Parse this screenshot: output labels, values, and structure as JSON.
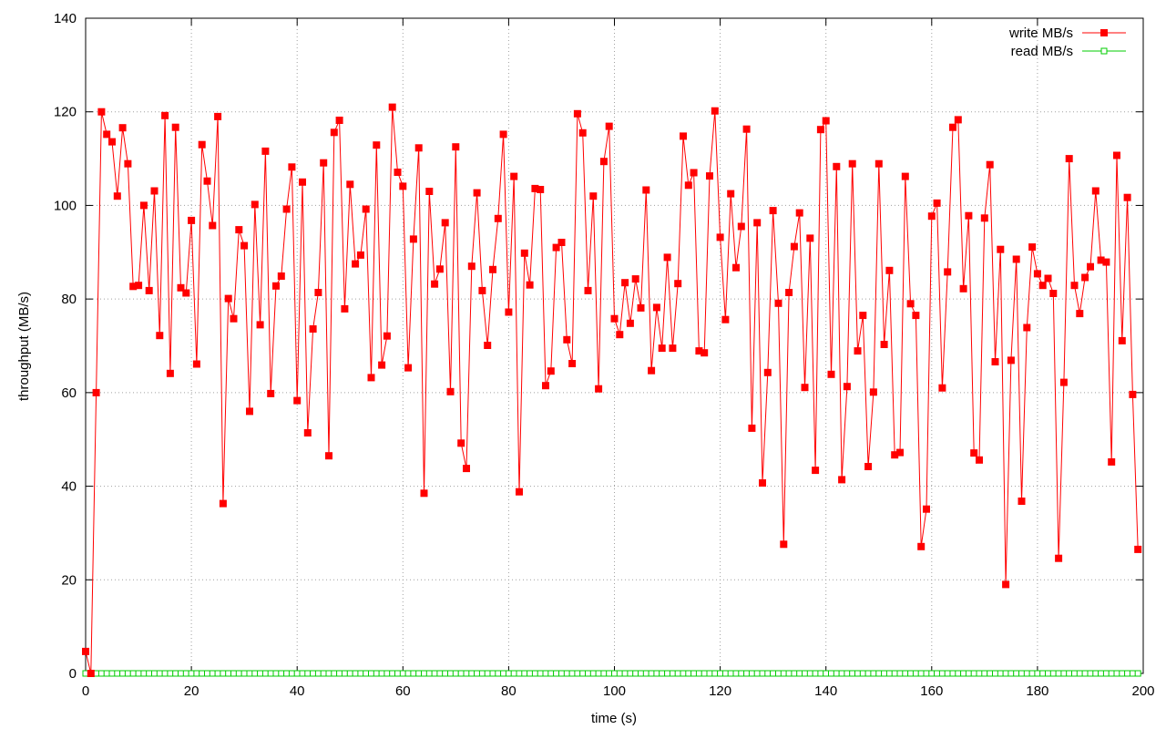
{
  "chart_data": {
    "type": "line",
    "title": "",
    "xlabel": "time (s)",
    "ylabel": "throughput (MB/s)",
    "xlim": [
      0,
      200
    ],
    "ylim": [
      0,
      140
    ],
    "xticks": [
      0,
      20,
      40,
      60,
      80,
      100,
      120,
      140,
      160,
      180,
      200
    ],
    "yticks": [
      0,
      20,
      40,
      60,
      80,
      100,
      120,
      140
    ],
    "grid": true,
    "legend_position": "top-right",
    "x": [
      0,
      1,
      2,
      3,
      4,
      5,
      6,
      7,
      8,
      9,
      10,
      11,
      12,
      13,
      14,
      15,
      16,
      17,
      18,
      19,
      20,
      21,
      22,
      23,
      24,
      25,
      26,
      27,
      28,
      29,
      30,
      31,
      32,
      33,
      34,
      35,
      36,
      37,
      38,
      39,
      40,
      41,
      42,
      43,
      44,
      45,
      46,
      47,
      48,
      49,
      50,
      51,
      52,
      53,
      54,
      55,
      56,
      57,
      58,
      59,
      60,
      61,
      62,
      63,
      64,
      65,
      66,
      67,
      68,
      69,
      70,
      71,
      72,
      73,
      74,
      75,
      76,
      77,
      78,
      79,
      80,
      81,
      82,
      83,
      84,
      85,
      86,
      87,
      88,
      89,
      90,
      91,
      92,
      93,
      94,
      95,
      96,
      97,
      98,
      99,
      100,
      101,
      102,
      103,
      104,
      105,
      106,
      107,
      108,
      109,
      110,
      111,
      112,
      113,
      114,
      115,
      116,
      117,
      118,
      119,
      120,
      121,
      122,
      123,
      124,
      125,
      126,
      127,
      128,
      129,
      130,
      131,
      132,
      133,
      134,
      135,
      136,
      137,
      138,
      139,
      140,
      141,
      142,
      143,
      144,
      145,
      146,
      147,
      148,
      149,
      150,
      151,
      152,
      153,
      154,
      155,
      156,
      157,
      158,
      159,
      160,
      161,
      162,
      163,
      164,
      165,
      166,
      167,
      168,
      169,
      170,
      171,
      172,
      173,
      174,
      175,
      176,
      177,
      178,
      179,
      180,
      181,
      182,
      183,
      184,
      185,
      186,
      187,
      188,
      189,
      190,
      191,
      192,
      193,
      194,
      195,
      196,
      197,
      198,
      199
    ],
    "series": [
      {
        "name": "write MB/s",
        "color": "#ff0000",
        "marker": "filled-square",
        "values": [
          4.7,
          0,
          60,
          120,
          115.2,
          113.6,
          102,
          116.6,
          108.9,
          82.7,
          82.9,
          100,
          81.8,
          103.1,
          72.2,
          119.2,
          64.1,
          116.7,
          82.4,
          81.3,
          96.8,
          66.1,
          113,
          105.2,
          95.7,
          119,
          36.3,
          80.1,
          75.8,
          94.8,
          91.4,
          56,
          100.2,
          74.5,
          111.6,
          59.8,
          82.8,
          84.9,
          99.2,
          108.2,
          58.3,
          105,
          51.4,
          73.6,
          81.4,
          109.1,
          46.5,
          115.6,
          118.2,
          77.9,
          104.5,
          87.5,
          89.4,
          99.2,
          63.2,
          112.9,
          65.9,
          72.1,
          121,
          107.1,
          104.1,
          65.3,
          92.8,
          112.3,
          38.5,
          103,
          83.2,
          86.4,
          96.3,
          60.2,
          112.5,
          49.2,
          43.8,
          87,
          102.7,
          81.8,
          70.1,
          86.3,
          97.2,
          115.2,
          77.2,
          106.2,
          38.8,
          89.8,
          83,
          103.6,
          103.4,
          61.5,
          64.6,
          91,
          92.1,
          71.3,
          66.2,
          119.6,
          115.5,
          81.8,
          102,
          60.8,
          109.4,
          116.9,
          75.8,
          72.4,
          83.5,
          74.8,
          84.3,
          78.1,
          103.3,
          64.7,
          78.2,
          69.5,
          88.9,
          69.5,
          83.3,
          114.8,
          104.3,
          107,
          68.9,
          68.5,
          106.3,
          120.2,
          93.2,
          75.6,
          102.5,
          86.7,
          95.5,
          116.3,
          52.4,
          96.3,
          40.7,
          64.3,
          98.9,
          79.1,
          27.6,
          81.4,
          91.2,
          98.4,
          61.1,
          93,
          43.4,
          116.2,
          118.1,
          63.9,
          108.3,
          41.4,
          61.3,
          108.9,
          68.9,
          76.5,
          44.2,
          60.1,
          108.9,
          70.3,
          86.1,
          46.7,
          47.2,
          106.2,
          79,
          76.5,
          27.1,
          35.1,
          97.7,
          100.5,
          61,
          85.8,
          116.7,
          118.3,
          82.2,
          97.8,
          47.1,
          45.6,
          97.3,
          108.7,
          66.6,
          90.6,
          19,
          66.9,
          88.5,
          36.8,
          73.9,
          91.1,
          85.4,
          82.9,
          84.4,
          81.2,
          24.6,
          62.2,
          110,
          82.9,
          76.9,
          84.6,
          86.9,
          103.1,
          88.3,
          87.9,
          45.2,
          110.7,
          71.1,
          101.7,
          59.6,
          26.5
        ]
      },
      {
        "name": "read MB/s",
        "color": "#00cc00",
        "marker": "open-square",
        "values": [
          0,
          0,
          0,
          0,
          0,
          0,
          0,
          0,
          0,
          0,
          0,
          0,
          0,
          0,
          0,
          0,
          0,
          0,
          0,
          0,
          0,
          0,
          0,
          0,
          0,
          0,
          0,
          0,
          0,
          0,
          0,
          0,
          0,
          0,
          0,
          0,
          0,
          0,
          0,
          0,
          0,
          0,
          0,
          0,
          0,
          0,
          0,
          0,
          0,
          0,
          0,
          0,
          0,
          0,
          0,
          0,
          0,
          0,
          0,
          0,
          0,
          0,
          0,
          0,
          0,
          0,
          0,
          0,
          0,
          0,
          0,
          0,
          0,
          0,
          0,
          0,
          0,
          0,
          0,
          0,
          0,
          0,
          0,
          0,
          0,
          0,
          0,
          0,
          0,
          0,
          0,
          0,
          0,
          0,
          0,
          0,
          0,
          0,
          0,
          0,
          0,
          0,
          0,
          0,
          0,
          0,
          0,
          0,
          0,
          0,
          0,
          0,
          0,
          0,
          0,
          0,
          0,
          0,
          0,
          0,
          0,
          0,
          0,
          0,
          0,
          0,
          0,
          0,
          0,
          0,
          0,
          0,
          0,
          0,
          0,
          0,
          0,
          0,
          0,
          0,
          0,
          0,
          0,
          0,
          0,
          0,
          0,
          0,
          0,
          0,
          0,
          0,
          0,
          0,
          0,
          0,
          0,
          0,
          0,
          0,
          0,
          0,
          0,
          0,
          0,
          0,
          0,
          0,
          0,
          0,
          0,
          0,
          0,
          0,
          0,
          0,
          0,
          0,
          0,
          0,
          0,
          0,
          0,
          0,
          0,
          0,
          0,
          0,
          0,
          0,
          0,
          0,
          0,
          0,
          0,
          0,
          0,
          0,
          0,
          0
        ]
      }
    ]
  }
}
